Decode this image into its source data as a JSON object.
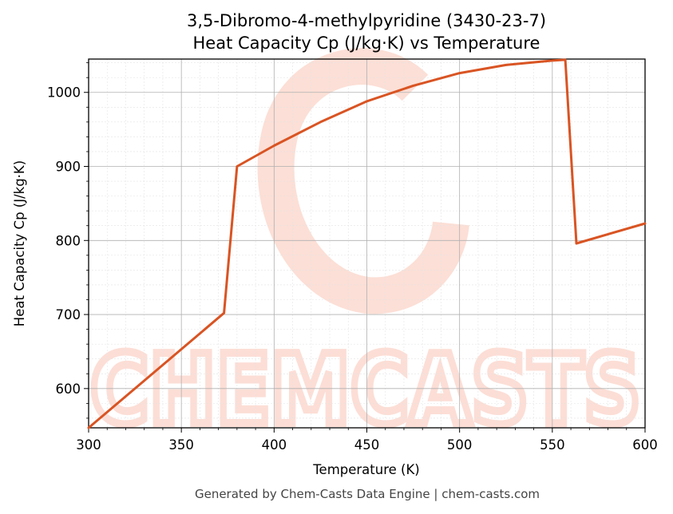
{
  "chart_data": {
    "type": "line",
    "title": "3,5-Dibromo-4-methylpyridine (3430-23-7)",
    "subtitle": "Heat Capacity Cp (J/kg·K) vs Temperature",
    "xlabel": "Temperature (K)",
    "ylabel": "Heat Capacity Cp (J/kg·K)",
    "xlim": [
      300,
      600
    ],
    "ylim": [
      547,
      1045
    ],
    "xticks": [
      300,
      350,
      400,
      450,
      500,
      550,
      600
    ],
    "yticks": [
      600,
      700,
      800,
      900,
      1000
    ],
    "grid": true,
    "series": [
      {
        "color": "#d95423",
        "x": [
          300,
          373,
          380,
          400,
          425,
          450,
          475,
          500,
          525,
          550,
          557,
          563,
          600
        ],
        "y": [
          547,
          702,
          900,
          928,
          960,
          988,
          1009,
          1026,
          1037,
          1043,
          1044,
          796,
          823
        ]
      }
    ]
  },
  "footer": "Generated by Chem-Casts Data Engine | chem-casts.com",
  "watermark": "CHEMCASTS",
  "colors": {
    "line": "#d95423",
    "watermark": "#fcd9cf"
  }
}
